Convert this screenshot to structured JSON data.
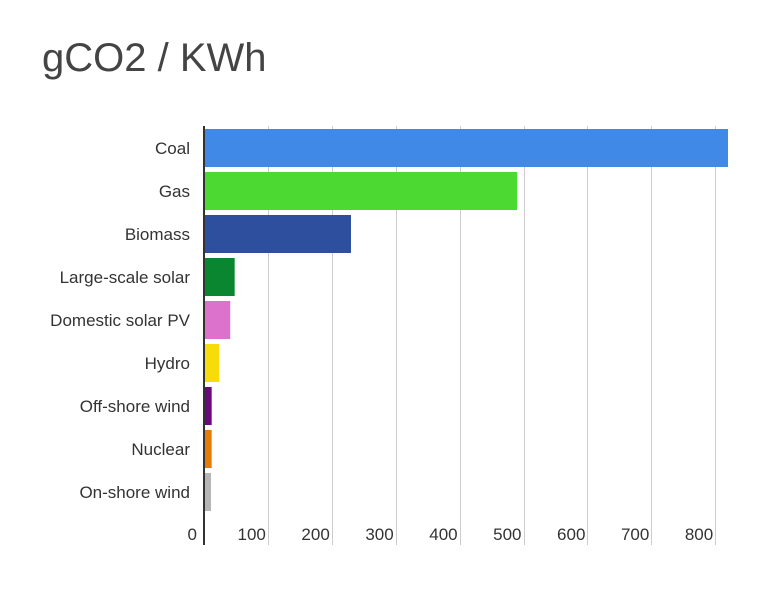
{
  "chart_data": {
    "type": "bar",
    "orientation": "horizontal",
    "title": "gCO2 / KWh",
    "xlabel": "",
    "ylabel": "",
    "categories": [
      "Coal",
      "Gas",
      "Biomass",
      "Large-scale solar",
      "Domestic solar PV",
      "Hydro",
      "Off-shore wind",
      "Nuclear",
      "On-shore wind"
    ],
    "values": [
      820,
      490,
      230,
      48,
      41,
      24,
      12,
      12,
      11
    ],
    "colors": [
      "#4189e6",
      "#4cd931",
      "#2e4f9e",
      "#09862f",
      "#dd72cc",
      "#f6dc09",
      "#6a0a7a",
      "#e57c07",
      "#b6b6b6"
    ],
    "xlim": [
      0,
      820
    ],
    "xticks": [
      0,
      100,
      200,
      300,
      400,
      500,
      600,
      700,
      800
    ],
    "grid": true,
    "legend": "none"
  }
}
